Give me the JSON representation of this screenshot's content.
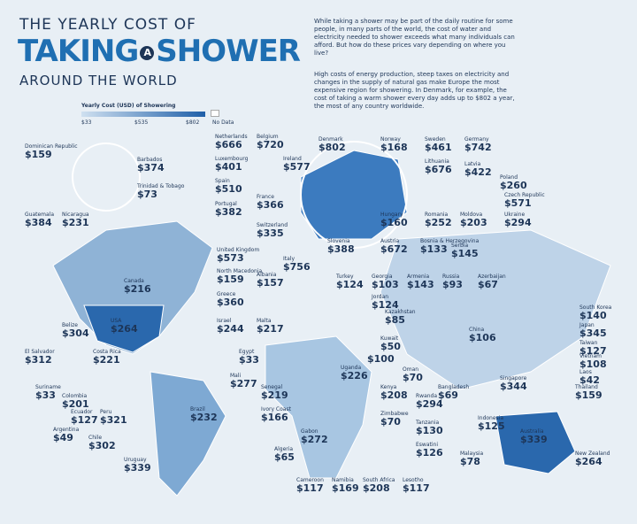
{
  "header": {
    "line1": "THE YEARLY COST OF",
    "word1": "TAKING",
    "word2": "A",
    "word3": "SHOWER",
    "line3": "AROUND THE WORLD"
  },
  "intro": [
    "While taking a shower may be part of the daily routine for some people, in many parts of the world, the cost of water and electricity needed to shower exceeds what many individuals can afford. But how do these prices vary depending on where you live?",
    "High costs of energy production, steep taxes on electricity and changes in the supply of natural gas make Europe the most expensive region for showering. In Denmark, for example, the cost of taking a warm shower every day adds up to $802 a year, the most of any country worldwide."
  ],
  "legend": {
    "title": "Yearly Cost (USD) of Showering",
    "ticks": [
      "$33",
      "$535",
      "$802"
    ],
    "no_data": "No Data"
  },
  "countries": [
    {
      "name": "Dominican Republic",
      "cost": "$159"
    },
    {
      "name": "Barbados",
      "cost": "$374"
    },
    {
      "name": "Trinidad & Tobago",
      "cost": "$73"
    },
    {
      "name": "Guatemala",
      "cost": "$384"
    },
    {
      "name": "Nicaragua",
      "cost": "$231"
    },
    {
      "name": "Netherlands",
      "cost": "$666"
    },
    {
      "name": "Belgium",
      "cost": "$720"
    },
    {
      "name": "Luxembourg",
      "cost": "$401"
    },
    {
      "name": "Ireland",
      "cost": "$577"
    },
    {
      "name": "Spain",
      "cost": "$510"
    },
    {
      "name": "France",
      "cost": "$366"
    },
    {
      "name": "Portugal",
      "cost": "$382"
    },
    {
      "name": "Switzerland",
      "cost": "$335"
    },
    {
      "name": "United Kingdom",
      "cost": "$573"
    },
    {
      "name": "North Macedonia",
      "cost": "$159"
    },
    {
      "name": "Albania",
      "cost": "$157"
    },
    {
      "name": "Greece",
      "cost": "$360"
    },
    {
      "name": "Israel",
      "cost": "$244"
    },
    {
      "name": "Malta",
      "cost": "$217"
    },
    {
      "name": "Denmark",
      "cost": "$802"
    },
    {
      "name": "Norway",
      "cost": "$168"
    },
    {
      "name": "Sweden",
      "cost": "$461"
    },
    {
      "name": "Germany",
      "cost": "$742"
    },
    {
      "name": "Latvia",
      "cost": "$422"
    },
    {
      "name": "Lithuania",
      "cost": "$676"
    },
    {
      "name": "Poland",
      "cost": "$260"
    },
    {
      "name": "Czech Republic",
      "cost": "$571"
    },
    {
      "name": "Hungary",
      "cost": "$160"
    },
    {
      "name": "Romania",
      "cost": "$252"
    },
    {
      "name": "Moldova",
      "cost": "$203"
    },
    {
      "name": "Ukraine",
      "cost": "$294"
    },
    {
      "name": "Slovenia",
      "cost": "$388"
    },
    {
      "name": "Austria",
      "cost": "$672"
    },
    {
      "name": "Bosnia & Herzegovina",
      "cost": "$133"
    },
    {
      "name": "Serbia",
      "cost": "$145"
    },
    {
      "name": "Italy",
      "cost": "$756"
    },
    {
      "name": "Turkey",
      "cost": "$124"
    },
    {
      "name": "Georgia",
      "cost": "$103"
    },
    {
      "name": "Armenia",
      "cost": "$143"
    },
    {
      "name": "Russia",
      "cost": "$93"
    },
    {
      "name": "Azerbaijan",
      "cost": "$67"
    },
    {
      "name": "Jordan",
      "cost": "$124"
    },
    {
      "name": "Kazakhstan",
      "cost": "$85"
    },
    {
      "name": "Egypt",
      "cost": "$33"
    },
    {
      "name": "Kuwait",
      "cost": "$50"
    },
    {
      "cost": "$100"
    },
    {
      "name": "China",
      "cost": "$106"
    },
    {
      "name": "South Korea",
      "cost": "$140"
    },
    {
      "name": "Japan",
      "cost": "$345"
    },
    {
      "name": "Taiwan",
      "cost": "$127"
    },
    {
      "name": "Vietnam",
      "cost": "$108"
    },
    {
      "name": "Laos",
      "cost": "$42"
    },
    {
      "name": "Thailand",
      "cost": "$159"
    },
    {
      "name": "Singapore",
      "cost": "$344"
    },
    {
      "name": "Bangladesh",
      "cost": "$69"
    },
    {
      "name": "Oman",
      "cost": "$70"
    },
    {
      "name": "Uganda",
      "cost": "$226"
    },
    {
      "name": "Kenya",
      "cost": "$208"
    },
    {
      "name": "Rwanda",
      "cost": "$294"
    },
    {
      "name": "Zimbabwe",
      "cost": "$70"
    },
    {
      "name": "Tanzania",
      "cost": "$130"
    },
    {
      "name": "Eswatini",
      "cost": "$126"
    },
    {
      "name": "Indonesia",
      "cost": "$125"
    },
    {
      "name": "Australia",
      "cost": "$339"
    },
    {
      "name": "New Zealand",
      "cost": "$264"
    },
    {
      "name": "Malaysia",
      "cost": "$78"
    },
    {
      "name": "Lesotho",
      "cost": "$117"
    },
    {
      "name": "South Africa",
      "cost": "$208"
    },
    {
      "name": "Namibia",
      "cost": "$169"
    },
    {
      "name": "Cameroon",
      "cost": "$117"
    },
    {
      "name": "Gabon",
      "cost": "$272"
    },
    {
      "name": "Algeria",
      "cost": "$65"
    },
    {
      "name": "Ivory Coast",
      "cost": "$166"
    },
    {
      "name": "Senegal",
      "cost": "$219"
    },
    {
      "name": "Mali",
      "cost": "$277"
    },
    {
      "name": "Canada",
      "cost": "$216"
    },
    {
      "name": "USA",
      "cost": "$264"
    },
    {
      "name": "Belize",
      "cost": "$304"
    },
    {
      "name": "El Salvador",
      "cost": "$312"
    },
    {
      "name": "Costa Rica",
      "cost": "$221"
    },
    {
      "name": "Suriname",
      "cost": "$33"
    },
    {
      "name": "Colombia",
      "cost": "$201"
    },
    {
      "name": "Ecuador",
      "cost": "$127"
    },
    {
      "name": "Peru",
      "cost": "$321"
    },
    {
      "name": "Argentina",
      "cost": "$49"
    },
    {
      "name": "Chile",
      "cost": "$302"
    },
    {
      "name": "Uruguay",
      "cost": "$339"
    },
    {
      "name": "Brazil",
      "cost": "$232"
    }
  ]
}
